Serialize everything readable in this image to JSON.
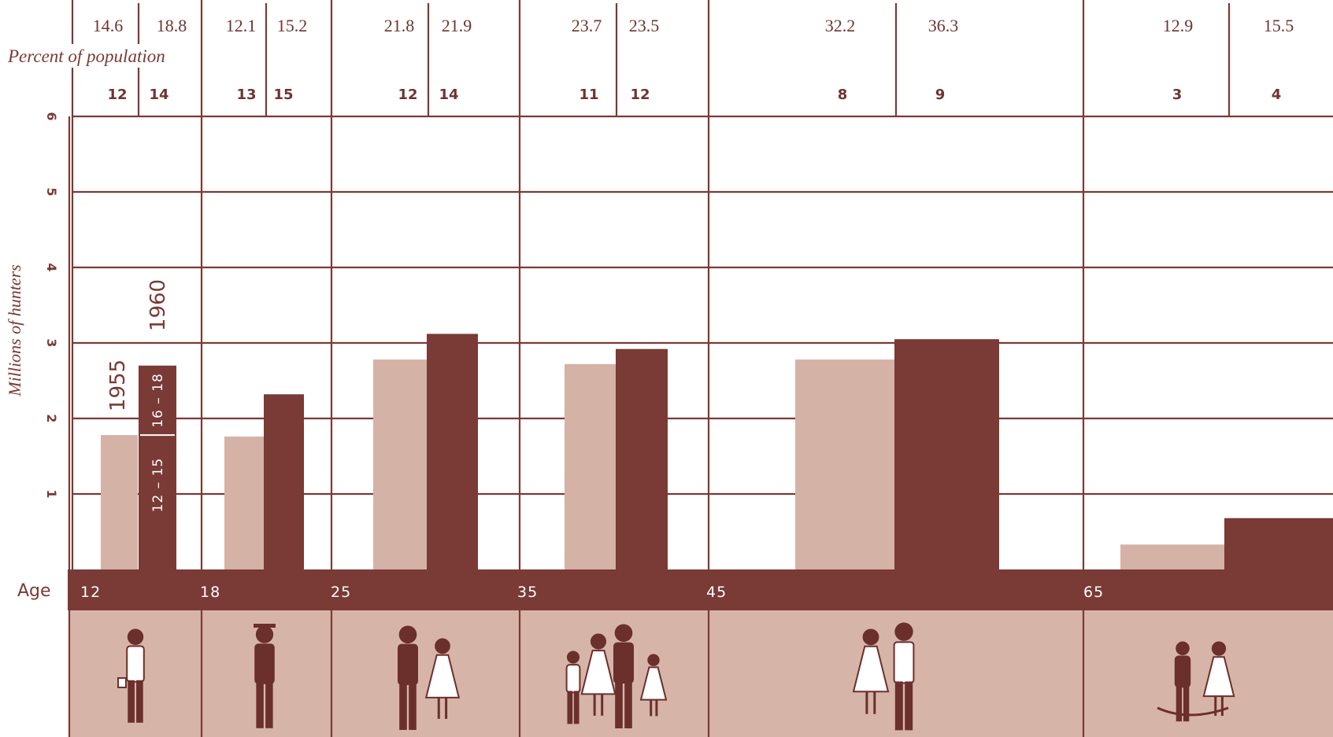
{
  "colors": {
    "dark": "#7a3a35",
    "light": "#d4b2a6",
    "grid": "#7a3a35",
    "panel": "#d6b5a8",
    "figure": "#6b2f2c"
  },
  "chart_data": {
    "type": "bar",
    "ylabel": "Millions of hunters",
    "ylim": [
      0,
      6
    ],
    "y_ticks": [
      "1",
      "2",
      "3",
      "4",
      "5",
      "6"
    ],
    "xlabel": "Age",
    "age_ticks": [
      "12",
      "18",
      "25",
      "35",
      "45",
      "65"
    ],
    "percent_label": "Percent of population",
    "legend": {
      "year1": "1955",
      "year2": "1960"
    },
    "sub_labels": {
      "lower": "12 – 15",
      "upper": "16 – 18"
    },
    "series": [
      {
        "name": "1955",
        "values": [
          1.78,
          1.76,
          2.78,
          2.72,
          2.78,
          0.33
        ]
      },
      {
        "name": "1960",
        "values": [
          2.7,
          2.32,
          3.12,
          2.92,
          3.05,
          0.68
        ]
      }
    ],
    "groups": [
      {
        "pct": [
          "14.6",
          "18.8"
        ],
        "rank": [
          "12",
          "14"
        ]
      },
      {
        "pct": [
          "12.1",
          "15.2"
        ],
        "rank": [
          "13",
          "15"
        ]
      },
      {
        "pct": [
          "21.8",
          "21.9"
        ],
        "rank": [
          "12",
          "14"
        ]
      },
      {
        "pct": [
          "23.7",
          "23.5"
        ],
        "rank": [
          "11",
          "12"
        ]
      },
      {
        "pct": [
          "32.2",
          "36.3"
        ],
        "rank": [
          "8",
          "9"
        ]
      },
      {
        "pct": [
          "12.9",
          "15.5"
        ],
        "rank": [
          "3",
          "4"
        ]
      }
    ],
    "split_value": 1.78
  },
  "icons": [
    "boy-icon",
    "graduate-icon",
    "bride-groom-icon",
    "family-icon",
    "couple-icon",
    "elderly-couple-icon"
  ]
}
